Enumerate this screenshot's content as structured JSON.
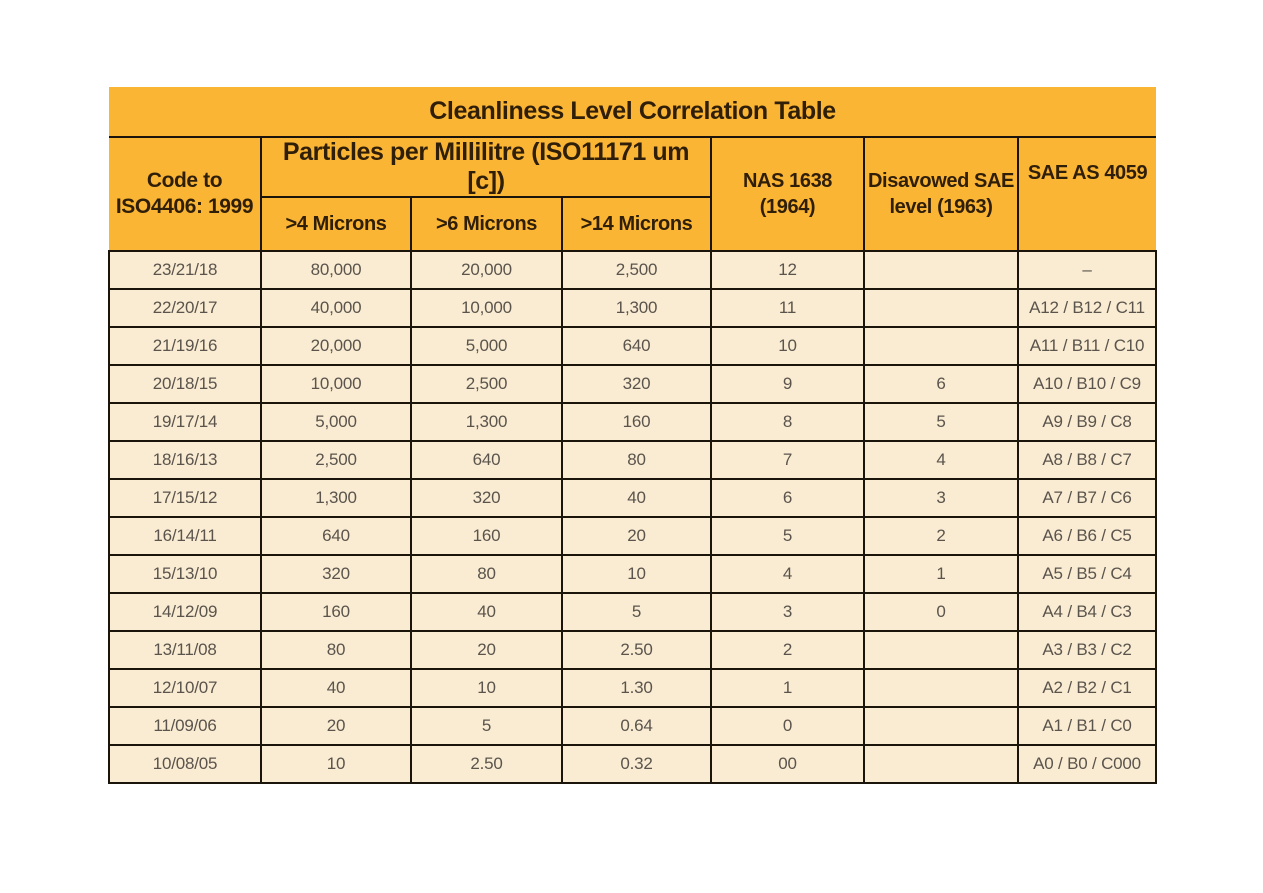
{
  "title": "Cleanliness Level Correlation Table",
  "colors": {
    "header_orange": "#FBB535",
    "body_cream": "#FAECD3",
    "border": "#1B140A",
    "header_text": "#2F1E08",
    "body_text": "#5A544C"
  },
  "chart_data": {
    "type": "table",
    "title": "Cleanliness Level Correlation Table",
    "header": {
      "code": [
        "Code to",
        "ISO4406: 1999"
      ],
      "particles_group": "Particles per Millilitre (ISO11171 um [c])",
      "sub_columns": [
        ">4 Microns",
        ">6 Microns",
        ">14 Microns"
      ],
      "nas": [
        "NAS 1638",
        "(1964)"
      ],
      "disavowed": [
        "Disavowed SAE",
        "level (1963)"
      ],
      "sae_as": "SAE AS 4059"
    },
    "columns": [
      "Code to ISO4406: 1999",
      ">4 Microns",
      ">6 Microns",
      ">14 Microns",
      "NAS 1638 (1964)",
      "Disavowed SAE level (1963)",
      "SAE AS 4059"
    ],
    "rows": [
      [
        "23/21/18",
        "80,000",
        "20,000",
        "2,500",
        "12",
        "",
        "–"
      ],
      [
        "22/20/17",
        "40,000",
        "10,000",
        "1,300",
        "11",
        "",
        "A12 / B12 / C11"
      ],
      [
        "21/19/16",
        "20,000",
        "5,000",
        "640",
        "10",
        "",
        "A11 / B11 / C10"
      ],
      [
        "20/18/15",
        "10,000",
        "2,500",
        "320",
        "9",
        "6",
        "A10 / B10 / C9"
      ],
      [
        "19/17/14",
        "5,000",
        "1,300",
        "160",
        "8",
        "5",
        "A9 / B9 / C8"
      ],
      [
        "18/16/13",
        "2,500",
        "640",
        "80",
        "7",
        "4",
        "A8 / B8 / C7"
      ],
      [
        "17/15/12",
        "1,300",
        "320",
        "40",
        "6",
        "3",
        "A7 / B7 / C6"
      ],
      [
        "16/14/11",
        "640",
        "160",
        "20",
        "5",
        "2",
        "A6 / B6 / C5"
      ],
      [
        "15/13/10",
        "320",
        "80",
        "10",
        "4",
        "1",
        "A5 / B5 / C4"
      ],
      [
        "14/12/09",
        "160",
        "40",
        "5",
        "3",
        "0",
        "A4 / B4 / C3"
      ],
      [
        "13/11/08",
        "80",
        "20",
        "2.50",
        "2",
        "",
        "A3 / B3 / C2"
      ],
      [
        "12/10/07",
        "40",
        "10",
        "1.30",
        "1",
        "",
        "A2 / B2 / C1"
      ],
      [
        "11/09/06",
        "20",
        "5",
        "0.64",
        "0",
        "",
        "A1 / B1 / C0"
      ],
      [
        "10/08/05",
        "10",
        "2.50",
        "0.32",
        "00",
        "",
        "A0 / B0 / C000"
      ]
    ]
  }
}
